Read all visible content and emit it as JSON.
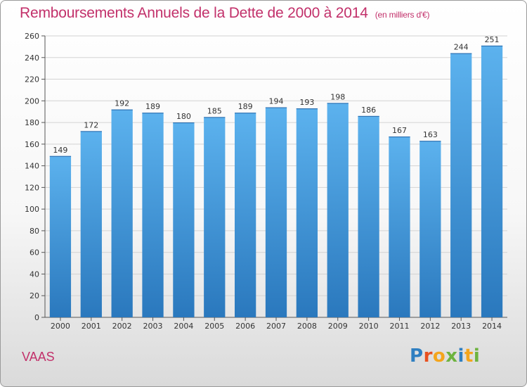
{
  "title": "Remboursements Annuels de la Dette de 2000 à 2014",
  "unit": "(en milliers d'€)",
  "place": "VAAS",
  "logo": {
    "letters": [
      "P",
      "r",
      "o",
      "x",
      "i",
      "t",
      "i"
    ],
    "colors": [
      "#2f7fc1",
      "#e8501f",
      "#f4a51c",
      "#6db33f",
      "#2f7fc1",
      "#f4a51c",
      "#6db33f"
    ]
  },
  "chart_data": {
    "type": "bar",
    "categories": [
      "2000",
      "2001",
      "2002",
      "2003",
      "2004",
      "2005",
      "2006",
      "2007",
      "2008",
      "2009",
      "2010",
      "2011",
      "2012",
      "2013",
      "2014"
    ],
    "values": [
      149,
      172,
      192,
      189,
      180,
      185,
      189,
      194,
      193,
      198,
      186,
      167,
      163,
      244,
      251
    ],
    "ylim": [
      0,
      260
    ],
    "yticks": [
      0,
      20,
      40,
      60,
      80,
      100,
      120,
      140,
      160,
      180,
      200,
      220,
      240,
      260
    ],
    "grid": true,
    "bar_color": "#3a8fd6"
  }
}
